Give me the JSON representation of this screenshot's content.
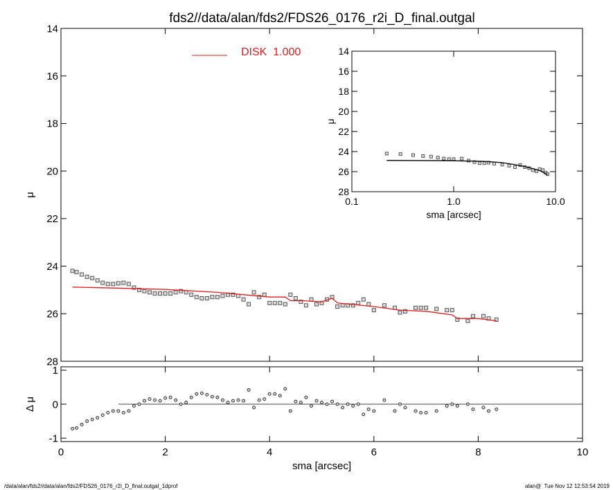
{
  "chart_data": [
    {
      "type": "scatter",
      "title": "fds2//data/alan/fds2/FDS26_0176_r2i_D_final.outgal",
      "ylabel": "μ",
      "xlim": [
        0,
        10
      ],
      "xticks": [
        0,
        2,
        4,
        6,
        8,
        10
      ],
      "xtick_labels": false,
      "ylim": [
        28,
        14
      ],
      "yticks": [
        14,
        16,
        18,
        20,
        22,
        24,
        26,
        28
      ],
      "series": [
        {
          "marker": "square",
          "color": "#555555",
          "x": [
            0.22,
            0.3,
            0.4,
            0.5,
            0.6,
            0.7,
            0.8,
            0.9,
            1.0,
            1.1,
            1.2,
            1.3,
            1.4,
            1.5,
            1.6,
            1.7,
            1.8,
            1.9,
            2.0,
            2.1,
            2.2,
            2.3,
            2.4,
            2.5,
            2.6,
            2.7,
            2.8,
            2.9,
            3.0,
            3.1,
            3.2,
            3.3,
            3.4,
            3.5,
            3.6,
            3.7,
            3.8,
            3.9,
            4.0,
            4.1,
            4.2,
            4.3,
            4.4,
            4.5,
            4.6,
            4.7,
            4.8,
            4.9,
            5.0,
            5.1,
            5.2,
            5.3,
            5.4,
            5.5,
            5.6,
            5.7,
            5.8,
            5.9,
            6.0,
            6.2,
            6.4,
            6.5,
            6.6,
            6.8,
            6.9,
            7.0,
            7.2,
            7.4,
            7.5,
            7.6,
            7.8,
            7.9,
            8.1,
            8.2,
            8.35
          ],
          "values": [
            24.2,
            24.25,
            24.35,
            24.45,
            24.5,
            24.6,
            24.7,
            24.75,
            24.75,
            24.72,
            24.7,
            24.75,
            24.9,
            25.0,
            25.05,
            25.1,
            25.15,
            25.15,
            25.15,
            25.15,
            25.1,
            25.05,
            25.1,
            25.2,
            25.3,
            25.35,
            25.35,
            25.3,
            25.3,
            25.25,
            25.2,
            25.2,
            25.25,
            25.4,
            25.6,
            25.1,
            25.3,
            25.2,
            25.55,
            25.55,
            25.55,
            25.6,
            25.2,
            25.35,
            25.5,
            25.65,
            25.4,
            25.6,
            25.55,
            25.4,
            25.3,
            25.7,
            25.65,
            25.65,
            25.65,
            25.55,
            25.4,
            25.6,
            25.85,
            25.65,
            25.75,
            25.95,
            25.9,
            25.75,
            25.75,
            25.75,
            25.8,
            25.85,
            25.85,
            26.25,
            26.3,
            26.1,
            26.1,
            26.2,
            26.25
          ]
        },
        {
          "marker": "line",
          "name": "DISK  1.000",
          "color": "#e41a1c",
          "x": [
            0.22,
            1,
            2,
            3,
            3.5,
            4,
            4.3,
            4.4,
            4.6,
            5,
            5.2,
            5.3,
            6,
            6.5,
            7,
            7.5,
            7.6,
            8,
            8.35
          ],
          "values": [
            24.88,
            24.92,
            24.98,
            25.1,
            25.2,
            25.3,
            25.3,
            25.45,
            25.45,
            25.5,
            25.35,
            25.55,
            25.7,
            25.85,
            25.9,
            26.05,
            26.2,
            26.2,
            26.3
          ]
        }
      ]
    },
    {
      "type": "scatter",
      "xlabel": "sma [arcsec]",
      "ylabel": "μ",
      "xscale": "log",
      "xlim": [
        0.1,
        10
      ],
      "xticks": [
        {
          "value": 0.1,
          "label": "0.1"
        },
        {
          "value": 1,
          "label": "1.0"
        },
        {
          "value": 10,
          "label": "10.0"
        }
      ],
      "ylim": [
        28,
        14
      ],
      "yticks": [
        14,
        16,
        18,
        20,
        22,
        24,
        26,
        28
      ],
      "series": [
        {
          "marker": "square",
          "color": "#555555",
          "x": [
            0.22,
            0.3,
            0.4,
            0.5,
            0.6,
            0.7,
            0.8,
            0.9,
            1.0,
            1.2,
            1.4,
            1.6,
            1.8,
            2.0,
            2.2,
            2.5,
            3.0,
            3.5,
            4.0,
            4.5,
            5.0,
            5.5,
            6.0,
            6.5,
            7.0,
            7.5,
            8.0,
            8.35
          ],
          "values": [
            24.2,
            24.25,
            24.35,
            24.45,
            24.5,
            24.6,
            24.7,
            24.75,
            24.75,
            24.7,
            24.9,
            25.05,
            25.15,
            25.15,
            25.1,
            25.2,
            25.3,
            25.4,
            25.55,
            25.35,
            25.55,
            25.65,
            25.85,
            25.95,
            25.75,
            25.85,
            26.1,
            26.25
          ]
        },
        {
          "marker": "line",
          "color": "#000000",
          "x": [
            0.22,
            1,
            2,
            3,
            4,
            5,
            6,
            7,
            8,
            8.35
          ],
          "values": [
            24.88,
            24.92,
            24.98,
            25.1,
            25.3,
            25.5,
            25.7,
            25.9,
            26.2,
            26.3
          ]
        }
      ]
    },
    {
      "type": "scatter",
      "xlabel": "sma [arcsec]",
      "ylabel": "Δ μ",
      "reference_line": 0,
      "xlim": [
        0,
        10
      ],
      "xticks": [
        0,
        2,
        4,
        6,
        8,
        10
      ],
      "ylim": [
        -1.1,
        1.1
      ],
      "yticks": [
        -1,
        0,
        1
      ],
      "series": [
        {
          "marker": "circle",
          "color": "#333333",
          "x": [
            0.22,
            0.3,
            0.4,
            0.5,
            0.6,
            0.7,
            0.8,
            0.9,
            1.0,
            1.1,
            1.2,
            1.3,
            1.4,
            1.5,
            1.6,
            1.7,
            1.8,
            1.9,
            2.0,
            2.1,
            2.2,
            2.3,
            2.4,
            2.5,
            2.6,
            2.7,
            2.8,
            2.9,
            3.0,
            3.1,
            3.2,
            3.3,
            3.4,
            3.5,
            3.6,
            3.7,
            3.8,
            3.9,
            4.0,
            4.1,
            4.2,
            4.3,
            4.4,
            4.5,
            4.6,
            4.7,
            4.8,
            4.9,
            5.0,
            5.1,
            5.2,
            5.3,
            5.4,
            5.5,
            5.6,
            5.7,
            5.8,
            5.9,
            6.0,
            6.2,
            6.4,
            6.5,
            6.6,
            6.8,
            6.9,
            7.0,
            7.2,
            7.4,
            7.5,
            7.6,
            7.8,
            7.9,
            8.1,
            8.2,
            8.35
          ],
          "values": [
            -0.72,
            -0.7,
            -0.6,
            -0.5,
            -0.45,
            -0.4,
            -0.32,
            -0.25,
            -0.2,
            -0.2,
            -0.25,
            -0.2,
            -0.05,
            0.0,
            0.1,
            0.15,
            0.12,
            0.1,
            0.18,
            0.2,
            0.12,
            0.0,
            0.05,
            0.2,
            0.3,
            0.32,
            0.28,
            0.22,
            0.2,
            0.12,
            0.05,
            0.1,
            0.12,
            0.1,
            0.42,
            -0.1,
            0.12,
            0.15,
            0.3,
            0.3,
            0.25,
            0.45,
            -0.2,
            0.08,
            0.05,
            0.2,
            -0.05,
            0.1,
            0.05,
            0.0,
            0.08,
            0.0,
            -0.1,
            0.0,
            -0.05,
            0.0,
            -0.3,
            -0.15,
            -0.2,
            0.12,
            -0.2,
            0.0,
            -0.1,
            -0.2,
            -0.25,
            -0.25,
            -0.2,
            -0.05,
            0.0,
            -0.05,
            0.0,
            -0.15,
            -0.1,
            -0.2,
            -0.15
          ]
        }
      ]
    }
  ],
  "footer": {
    "left": "/data/alan/fds2//data/alan/fds2/FDS26_0176_r2i_D_final.outgal_1dprof",
    "right": "alan@  Tue Nov 12 12:53:54 2019"
  }
}
